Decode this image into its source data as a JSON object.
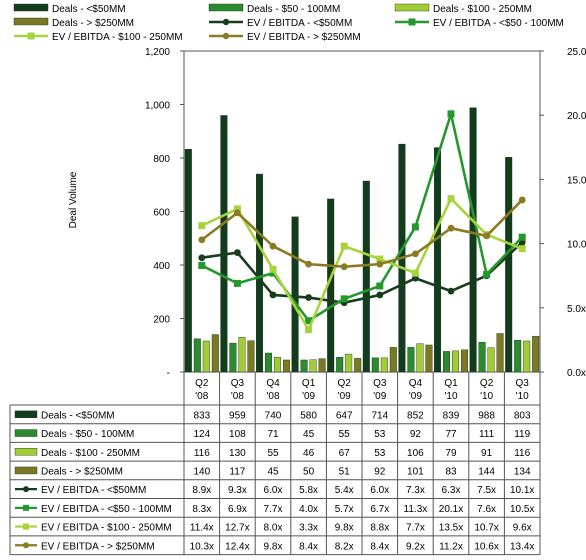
{
  "chart_data": {
    "type": "bar",
    "ylabel": "Deal Volume",
    "ylim": [
      0,
      1200
    ],
    "y2lim": [
      0,
      25
    ],
    "yticks": [
      "-",
      "200",
      "400",
      "600",
      "800",
      "1,000",
      "1,200"
    ],
    "y2ticks": [
      "0.0x",
      "5.0x",
      "10.0x",
      "15.0x",
      "20.0x",
      "25.0x"
    ],
    "legend_position": "top",
    "categories": [
      {
        "q": "Q2",
        "y": "'08"
      },
      {
        "q": "Q3",
        "y": "'08"
      },
      {
        "q": "Q4",
        "y": "'08"
      },
      {
        "q": "Q1",
        "y": "'09"
      },
      {
        "q": "Q2",
        "y": "'09"
      },
      {
        "q": "Q3",
        "y": "'09"
      },
      {
        "q": "Q4",
        "y": "'09"
      },
      {
        "q": "Q1",
        "y": "'10"
      },
      {
        "q": "Q2",
        "y": "'10"
      },
      {
        "q": "Q3",
        "y": "'10"
      }
    ],
    "bar_series": [
      {
        "name": "Deals - <$50MM",
        "color": "#123d1c",
        "values": [
          833,
          959,
          740,
          580,
          647,
          714,
          852,
          839,
          988,
          803
        ],
        "labels": [
          "833",
          "959",
          "740",
          "580",
          "647",
          "714",
          "852",
          "839",
          "988",
          "803"
        ]
      },
      {
        "name": "Deals - $50 - 100MM",
        "color": "#2a8c2e",
        "values": [
          124,
          108,
          71,
          45,
          55,
          53,
          92,
          77,
          111,
          119
        ],
        "labels": [
          "124",
          "108",
          "71",
          "45",
          "55",
          "53",
          "92",
          "77",
          "111",
          "119"
        ]
      },
      {
        "name": "Deals - $100 - 250MM",
        "color": "#a2cc33",
        "values": [
          116,
          130,
          55,
          46,
          67,
          53,
          106,
          79,
          91,
          116
        ],
        "labels": [
          "116",
          "130",
          "55",
          "46",
          "67",
          "53",
          "106",
          "79",
          "91",
          "116"
        ]
      },
      {
        "name": "Deals - > $250MM",
        "color": "#7a7a24",
        "values": [
          140,
          117,
          45,
          50,
          51,
          92,
          101,
          83,
          144,
          134
        ],
        "labels": [
          "140",
          "117",
          "45",
          "50",
          "51",
          "92",
          "101",
          "83",
          "144",
          "134"
        ]
      }
    ],
    "line_series": [
      {
        "name": "EV / EBITDA - <$50MM",
        "color": "#173d1c",
        "marker": "circle",
        "values": [
          8.9,
          9.3,
          6.0,
          5.8,
          5.4,
          6.0,
          7.3,
          6.3,
          7.5,
          10.1
        ],
        "labels": [
          "8.9x",
          "9.3x",
          "6.0x",
          "5.8x",
          "5.4x",
          "6.0x",
          "7.3x",
          "6.3x",
          "7.5x",
          "10.1x"
        ]
      },
      {
        "name": "EV / EBITDA - <$50 - 100MM",
        "color": "#24982e",
        "marker": "square",
        "values": [
          8.3,
          6.9,
          7.7,
          4.0,
          5.7,
          6.7,
          11.3,
          20.1,
          7.6,
          10.5
        ],
        "labels": [
          "8.3x",
          "6.9x",
          "7.7x",
          "4.0x",
          "5.7x",
          "6.7x",
          "11.3x",
          "20.1x",
          "7.6x",
          "10.5x"
        ]
      },
      {
        "name": "EV / EBITDA - $100 - 250MM",
        "color": "#a8d23e",
        "marker": "square",
        "values": [
          11.4,
          12.7,
          8.0,
          3.3,
          9.8,
          8.8,
          7.7,
          13.5,
          10.7,
          9.6
        ],
        "labels": [
          "11.4x",
          "12.7x",
          "8.0x",
          "3.3x",
          "9.8x",
          "8.8x",
          "7.7x",
          "13.5x",
          "10.7x",
          "9.6x"
        ]
      },
      {
        "name": "EV / EBITDA - > $250MM",
        "color": "#8a7a22",
        "marker": "circle",
        "values": [
          10.3,
          12.4,
          9.8,
          8.4,
          8.2,
          8.4,
          9.2,
          11.2,
          10.6,
          13.4
        ],
        "labels": [
          "10.3x",
          "12.4x",
          "9.8x",
          "8.4x",
          "8.2x",
          "8.4x",
          "9.2x",
          "11.2x",
          "10.6x",
          "13.4x"
        ]
      }
    ]
  }
}
